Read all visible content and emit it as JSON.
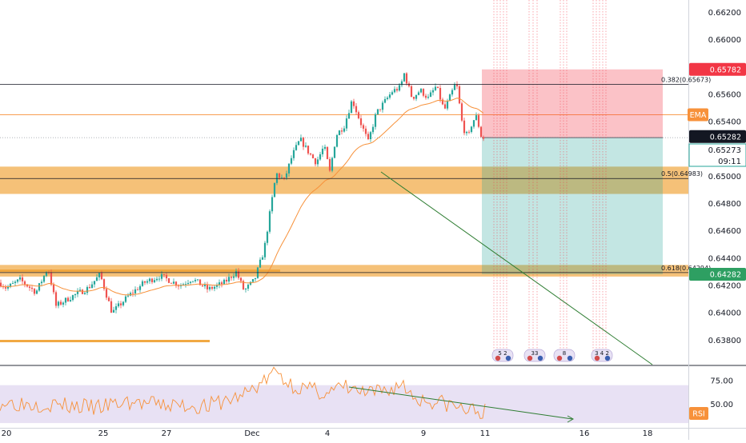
{
  "chart_data": {
    "type": "candlestick",
    "x_ticks": [
      "20",
      "25",
      "27",
      "Dec",
      "4",
      "9",
      "11",
      "16",
      "18"
    ],
    "price_ticks": [
      "0.66200",
      "0.66000",
      "0.65800",
      "0.65600",
      "0.65400",
      "0.65200",
      "0.65000",
      "0.64800",
      "0.64600",
      "0.64400",
      "0.64200",
      "0.64000",
      "0.63800"
    ],
    "price_range": [
      0.6362,
      0.6629
    ],
    "fib_levels": [
      {
        "label": "0.382(0.65673)",
        "price": 0.65673
      },
      {
        "label": "0.5(0.64983)",
        "price": 0.64983
      },
      {
        "label": "0.618(0.64294)",
        "price": 0.64294
      }
    ],
    "zones": [
      {
        "from": 0.6487,
        "to": 0.6507,
        "color": "#f0a030"
      },
      {
        "from": 0.64265,
        "to": 0.6435,
        "color": "#f0a030"
      }
    ],
    "position": {
      "entry": 0.65282,
      "stop": 0.65782,
      "target": 0.64282
    },
    "price_tags": [
      {
        "text": "0.65782",
        "price": 0.65782,
        "bg": "#f23645"
      },
      {
        "text": "EMA",
        "price": 0.6545,
        "bg": "#f7913a"
      },
      {
        "text": "0.65282",
        "price": 0.6529,
        "bg": "#131722"
      },
      {
        "text": "0.64282",
        "price": 0.64282,
        "bg": "#2e9f62"
      }
    ],
    "last_price": {
      "price": "0.65273",
      "countdown": "09:11"
    },
    "rsi": {
      "label": "RSI",
      "ticks": [
        "75.00",
        "50.00"
      ],
      "range": [
        25,
        90
      ],
      "band": [
        30,
        70
      ]
    },
    "event_labels": [
      "5 2",
      "33",
      "8",
      "3 4 2"
    ],
    "colors": {
      "up": "#26a69a",
      "down": "#ef5350",
      "ema": "#f7913a",
      "rsi": "#f7913a",
      "trend": "#2e7d32"
    }
  }
}
